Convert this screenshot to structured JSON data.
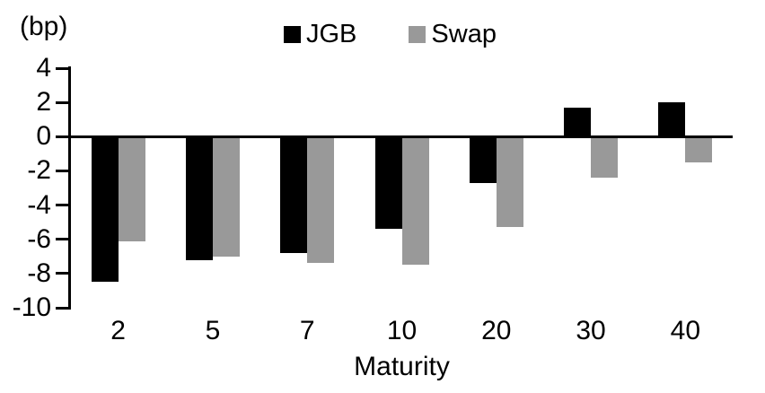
{
  "chart_data": {
    "type": "bar",
    "title": "",
    "unit_label": "(bp)",
    "xlabel": "Maturity",
    "ylabel": "",
    "categories": [
      "2",
      "5",
      "7",
      "10",
      "20",
      "30",
      "40"
    ],
    "series": [
      {
        "name": "JGB",
        "color": "#000000",
        "values": [
          -8.5,
          -7.2,
          -6.8,
          -5.4,
          -2.7,
          1.7,
          2.0
        ]
      },
      {
        "name": "Swap",
        "color": "#999999",
        "values": [
          -6.1,
          -7.0,
          -7.4,
          -7.5,
          -5.3,
          -2.4,
          -1.5
        ]
      }
    ],
    "y_ticks": [
      4,
      2,
      0,
      -2,
      -4,
      -6,
      -8,
      -10
    ],
    "ylim": [
      -10,
      4
    ],
    "grid": false,
    "zero_line": true,
    "legend_position": "top-center",
    "background_color": "#ffffff",
    "axis_color": "#000000"
  }
}
